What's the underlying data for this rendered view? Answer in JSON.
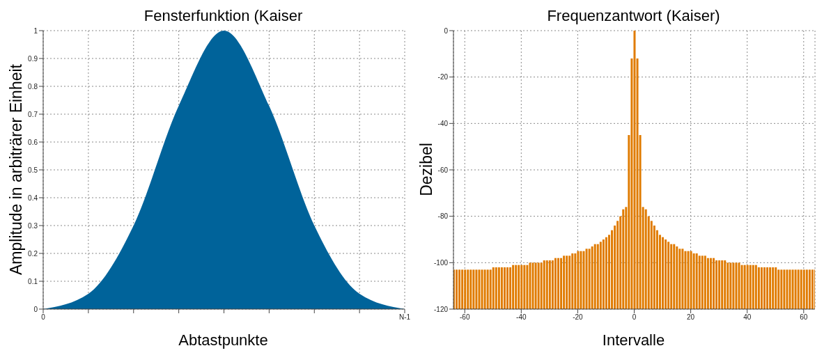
{
  "chart_data": [
    {
      "type": "area",
      "title": "Fensterfunktion (Kaiser",
      "xlabel": "Abtastpunkte",
      "ylabel": "Amplitude in arbiträrer Einheit",
      "grid": true,
      "categories": [
        "0",
        null,
        null,
        null,
        null,
        null,
        null,
        null,
        "N-1"
      ],
      "series": [
        {
          "color": "#00639a",
          "values": [
            0,
            0.055,
            0.3,
            0.73,
            1,
            0.73,
            0.3,
            0.055,
            0
          ]
        }
      ],
      "ylim": [
        0,
        1
      ],
      "yticks": [
        0,
        0.1,
        0.2,
        0.3,
        0.4,
        0.5,
        0.6,
        0.7,
        0.8,
        0.9,
        1
      ]
    },
    {
      "type": "bar",
      "title": "Frequenzantwort (Kaiser)",
      "xlabel": "Intervalle",
      "ylabel": "Dezibel",
      "grid": true,
      "x": [
        -64,
        -63,
        -62,
        -61,
        -60,
        -59,
        -58,
        -57,
        -56,
        -55,
        -54,
        -53,
        -52,
        -51,
        -50,
        -49,
        -48,
        -47,
        -46,
        -45,
        -44,
        -43,
        -42,
        -41,
        -40,
        -39,
        -38,
        -37,
        -36,
        -35,
        -34,
        -33,
        -32,
        -31,
        -30,
        -29,
        -28,
        -27,
        -26,
        -25,
        -24,
        -23,
        -22,
        -21,
        -20,
        -19,
        -18,
        -17,
        -16,
        -15,
        -14,
        -13,
        -12,
        -11,
        -10,
        -9,
        -8,
        -7,
        -6,
        -5,
        -4,
        -3,
        -2,
        -1,
        0,
        1,
        2,
        3,
        4,
        5,
        6,
        7,
        8,
        9,
        10,
        11,
        12,
        13,
        14,
        15,
        16,
        17,
        18,
        19,
        20,
        21,
        22,
        23,
        24,
        25,
        26,
        27,
        28,
        29,
        30,
        31,
        32,
        33,
        34,
        35,
        36,
        37,
        38,
        39,
        40,
        41,
        42,
        43,
        44,
        45,
        46,
        47,
        48,
        49,
        50,
        51,
        52,
        53,
        54,
        55,
        56,
        57,
        58,
        59,
        60,
        61,
        62,
        63,
        64
      ],
      "series": [
        {
          "color": "#e07b00",
          "values": [
            17,
            17,
            17,
            17,
            17,
            17,
            17,
            17,
            17,
            17,
            17,
            17,
            17,
            17,
            18,
            18,
            18,
            18,
            18,
            18,
            18,
            19,
            19,
            19,
            19,
            19,
            19,
            20,
            20,
            20,
            20,
            20,
            21,
            21,
            21,
            21,
            22,
            22,
            22,
            23,
            23,
            23,
            24,
            24,
            25,
            25,
            25,
            26,
            26,
            27,
            28,
            28,
            29,
            30,
            31,
            32,
            34,
            36,
            38,
            40,
            43,
            44,
            75,
            108,
            120,
            108,
            75,
            44,
            43,
            40,
            38,
            36,
            34,
            32,
            31,
            30,
            29,
            28,
            28,
            27,
            26,
            26,
            25,
            25,
            25,
            24,
            24,
            23,
            23,
            23,
            22,
            22,
            22,
            21,
            21,
            21,
            21,
            20,
            20,
            20,
            20,
            20,
            19,
            19,
            19,
            19,
            19,
            19,
            18,
            18,
            18,
            18,
            18,
            18,
            18,
            17,
            17,
            17,
            17,
            17,
            17,
            17,
            17,
            17,
            17,
            17,
            17,
            17,
            17
          ],
          "base": [
            -120,
            -120,
            -120,
            -120,
            -120,
            -120,
            -120,
            -120,
            -120,
            -120,
            -120,
            -120,
            -120,
            -120,
            -120,
            -120,
            -120,
            -120,
            -120,
            -120,
            -120,
            -120,
            -120,
            -120,
            -120,
            -120,
            -120,
            -120,
            -120,
            -120,
            -120,
            -120,
            -120,
            -120,
            -120,
            -120,
            -120,
            -120,
            -120,
            -120,
            -120,
            -120,
            -120,
            -120,
            -120,
            -120,
            -120,
            -120,
            -120,
            -120,
            -120,
            -120,
            -120,
            -120,
            -120,
            -120,
            -120,
            -120,
            -120,
            -120,
            -120,
            -120,
            -120,
            -120,
            -120,
            -120,
            -120,
            -120,
            -120,
            -120,
            -120,
            -120,
            -120,
            -120,
            -120,
            -120,
            -120,
            -120,
            -120,
            -120,
            -120,
            -120,
            -120,
            -120,
            -120,
            -120,
            -120,
            -120,
            -120,
            -120,
            -120,
            -120,
            -120,
            -120,
            -120,
            -120,
            -120,
            -120,
            -120,
            -120,
            -120,
            -120,
            -120,
            -120,
            -120,
            -120,
            -120,
            -120,
            -120,
            -120,
            -120,
            -120,
            -120,
            -120,
            -120,
            -120,
            -120,
            -120,
            -120,
            -120,
            -120,
            -120,
            -120,
            -120,
            -120,
            -120,
            -120,
            -120,
            -120
          ]
        }
      ],
      "xlim": [
        -64,
        64
      ],
      "xticks": [
        -60,
        -40,
        -20,
        0,
        20,
        40,
        60
      ],
      "ylim": [
        -120,
        0
      ],
      "yticks": [
        -120,
        -100,
        -80,
        -60,
        -40,
        -20,
        0
      ]
    }
  ]
}
